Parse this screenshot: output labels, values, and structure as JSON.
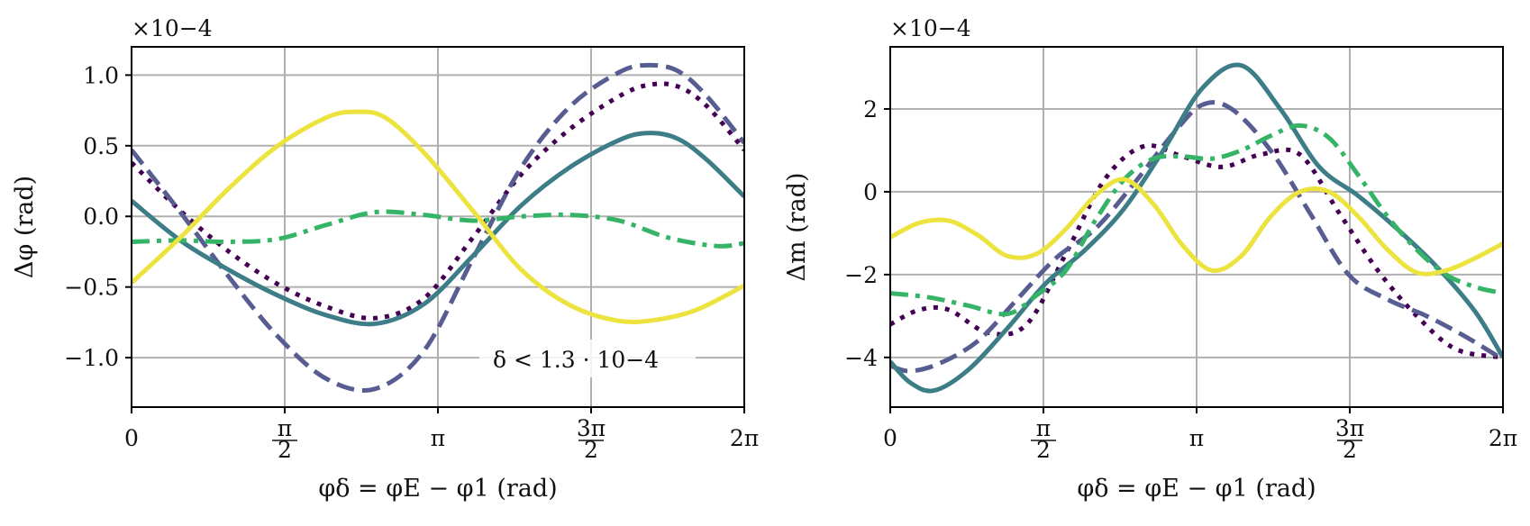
{
  "chart_data": [
    {
      "type": "line",
      "id": "left",
      "xlabel": "φδ = φE − φ1 (rad)",
      "ylabel": "Δφ (rad)",
      "multiplier": "×10−4",
      "annotation": "δ < 1.3 · 10−4",
      "xlim": [
        0,
        6.2832
      ],
      "ylim": [
        -1.35,
        1.2
      ],
      "xticks": [
        {
          "value": 0,
          "label": "0"
        },
        {
          "value": 1.5708,
          "label": "π/2"
        },
        {
          "value": 3.1416,
          "label": "π"
        },
        {
          "value": 4.7124,
          "label": "3π/2"
        },
        {
          "value": 6.2832,
          "label": "2π"
        }
      ],
      "yticks": [
        {
          "value": 1.0,
          "label": "1.0"
        },
        {
          "value": 0.5,
          "label": "0.5"
        },
        {
          "value": 0.0,
          "label": "0.0"
        },
        {
          "value": -0.5,
          "label": "−0.5"
        },
        {
          "value": -1.0,
          "label": "−1.0"
        }
      ],
      "series": [
        {
          "name": "dotted-purple",
          "color": "#440154",
          "dash": "dotted",
          "x": [
            0,
            0.5,
            1.0,
            1.5,
            2.0,
            2.5,
            3.0,
            3.5,
            4.0,
            4.5,
            5.0,
            5.3,
            5.6,
            5.9,
            6.2832
          ],
          "y": [
            0.38,
            0.04,
            -0.25,
            -0.48,
            -0.64,
            -0.72,
            -0.58,
            -0.15,
            0.3,
            0.62,
            0.85,
            0.93,
            0.92,
            0.78,
            0.47
          ]
        },
        {
          "name": "dashed-slate",
          "color": "#575d91",
          "dash": "dashed",
          "x": [
            0,
            0.5,
            1.0,
            1.5,
            2.0,
            2.5,
            3.0,
            3.5,
            4.0,
            4.5,
            5.0,
            5.3,
            5.6,
            5.9,
            6.2832
          ],
          "y": [
            0.47,
            0.03,
            -0.43,
            -0.85,
            -1.15,
            -1.22,
            -0.95,
            -0.3,
            0.35,
            0.78,
            1.02,
            1.07,
            1.03,
            0.85,
            0.52
          ]
        },
        {
          "name": "solid-teal",
          "color": "#3d7d87",
          "dash": "solid",
          "x": [
            0,
            0.5,
            1.0,
            1.5,
            2.0,
            2.5,
            3.0,
            3.5,
            4.0,
            4.5,
            5.0,
            5.3,
            5.6,
            5.9,
            6.2832
          ],
          "y": [
            0.11,
            -0.17,
            -0.38,
            -0.56,
            -0.7,
            -0.76,
            -0.62,
            -0.28,
            0.08,
            0.35,
            0.54,
            0.59,
            0.55,
            0.4,
            0.14
          ]
        },
        {
          "name": "dashdot-green",
          "color": "#35b467",
          "dash": "dashdot",
          "x": [
            0,
            0.5,
            1.0,
            1.5,
            2.0,
            2.5,
            3.0,
            3.5,
            4.0,
            4.5,
            5.0,
            5.5,
            6.0,
            6.2832
          ],
          "y": [
            -0.18,
            -0.17,
            -0.18,
            -0.16,
            -0.06,
            0.03,
            0.01,
            -0.03,
            0.0,
            0.01,
            -0.03,
            -0.15,
            -0.21,
            -0.19
          ]
        },
        {
          "name": "solid-yellow",
          "color": "#ece33e",
          "dash": "solid",
          "x": [
            0,
            0.5,
            1.0,
            1.5,
            2.0,
            2.3,
            2.6,
            3.0,
            3.5,
            4.0,
            4.5,
            5.0,
            5.4,
            5.8,
            6.2832
          ],
          "y": [
            -0.47,
            -0.15,
            0.2,
            0.5,
            0.7,
            0.74,
            0.7,
            0.45,
            0.04,
            -0.38,
            -0.63,
            -0.74,
            -0.73,
            -0.66,
            -0.49
          ]
        }
      ]
    },
    {
      "type": "line",
      "id": "right",
      "xlabel": "φδ = φE − φ1 (rad)",
      "ylabel": "Δm (rad)",
      "multiplier": "×10−4",
      "xlim": [
        0,
        6.2832
      ],
      "ylim": [
        -5.2,
        3.5
      ],
      "xticks": [
        {
          "value": 0,
          "label": "0"
        },
        {
          "value": 1.5708,
          "label": "π/2"
        },
        {
          "value": 3.1416,
          "label": "π"
        },
        {
          "value": 4.7124,
          "label": "3π/2"
        },
        {
          "value": 6.2832,
          "label": "2π"
        }
      ],
      "yticks": [
        {
          "value": 2,
          "label": "2"
        },
        {
          "value": 0,
          "label": "0"
        },
        {
          "value": -2,
          "label": "−2"
        },
        {
          "value": -4,
          "label": "−4"
        }
      ],
      "series": [
        {
          "name": "dotted-purple",
          "color": "#440154",
          "dash": "dotted",
          "x": [
            0,
            0.3,
            0.6,
            1.0,
            1.4,
            1.8,
            2.2,
            2.6,
            3.0,
            3.4,
            3.8,
            4.2,
            4.6,
            5.0,
            5.4,
            5.8,
            6.2832
          ],
          "y": [
            -3.2,
            -2.85,
            -2.85,
            -3.4,
            -3.2,
            -1.5,
            0.3,
            1.1,
            0.85,
            0.6,
            0.9,
            0.9,
            -0.5,
            -1.9,
            -3.0,
            -3.8,
            -4.0
          ]
        },
        {
          "name": "dashed-slate",
          "color": "#575d91",
          "dash": "dashed",
          "x": [
            0,
            0.2,
            0.5,
            0.9,
            1.3,
            1.7,
            2.1,
            2.5,
            2.9,
            3.2,
            3.5,
            3.9,
            4.3,
            4.7,
            5.1,
            5.5,
            5.9,
            6.2832
          ],
          "y": [
            -4.2,
            -4.33,
            -4.15,
            -3.6,
            -2.6,
            -1.6,
            -0.9,
            0.2,
            1.4,
            2.1,
            2.0,
            1.0,
            -0.5,
            -2.0,
            -2.6,
            -3.0,
            -3.5,
            -4.05
          ]
        },
        {
          "name": "solid-teal",
          "color": "#3d7d87",
          "dash": "solid",
          "x": [
            0,
            0.2,
            0.45,
            0.8,
            1.2,
            1.6,
            2.0,
            2.4,
            2.8,
            3.2,
            3.6,
            4.0,
            4.4,
            4.8,
            5.2,
            5.6,
            6.0,
            6.2832
          ],
          "y": [
            -4.1,
            -4.6,
            -4.8,
            -4.3,
            -3.3,
            -2.2,
            -1.4,
            -0.4,
            1.0,
            2.5,
            3.05,
            2.0,
            0.6,
            -0.1,
            -0.9,
            -1.8,
            -2.9,
            -4.0
          ]
        },
        {
          "name": "dashdot-green",
          "color": "#35b467",
          "dash": "dashdot",
          "x": [
            0,
            0.4,
            0.8,
            1.2,
            1.5,
            1.8,
            2.1,
            2.4,
            2.7,
            3.0,
            3.3,
            3.6,
            3.9,
            4.2,
            4.5,
            4.8,
            5.1,
            5.4,
            5.7,
            6.0,
            6.2832
          ],
          "y": [
            -2.45,
            -2.55,
            -2.75,
            -2.95,
            -2.5,
            -1.9,
            -0.7,
            0.3,
            0.8,
            0.85,
            0.8,
            1.0,
            1.35,
            1.6,
            1.3,
            0.4,
            -0.6,
            -1.4,
            -2.0,
            -2.3,
            -2.45
          ]
        },
        {
          "name": "solid-yellow",
          "color": "#ece33e",
          "dash": "solid",
          "x": [
            0,
            0.3,
            0.6,
            0.9,
            1.2,
            1.5,
            1.8,
            2.1,
            2.4,
            2.7,
            3.0,
            3.3,
            3.6,
            3.9,
            4.2,
            4.5,
            4.8,
            5.1,
            5.4,
            5.7,
            6.0,
            6.2832
          ],
          "y": [
            -1.1,
            -0.75,
            -0.7,
            -1.05,
            -1.55,
            -1.5,
            -0.9,
            -0.1,
            0.3,
            -0.3,
            -1.3,
            -1.9,
            -1.55,
            -0.6,
            0.0,
            0.0,
            -0.6,
            -1.4,
            -1.95,
            -1.9,
            -1.6,
            -1.25
          ]
        }
      ]
    }
  ]
}
